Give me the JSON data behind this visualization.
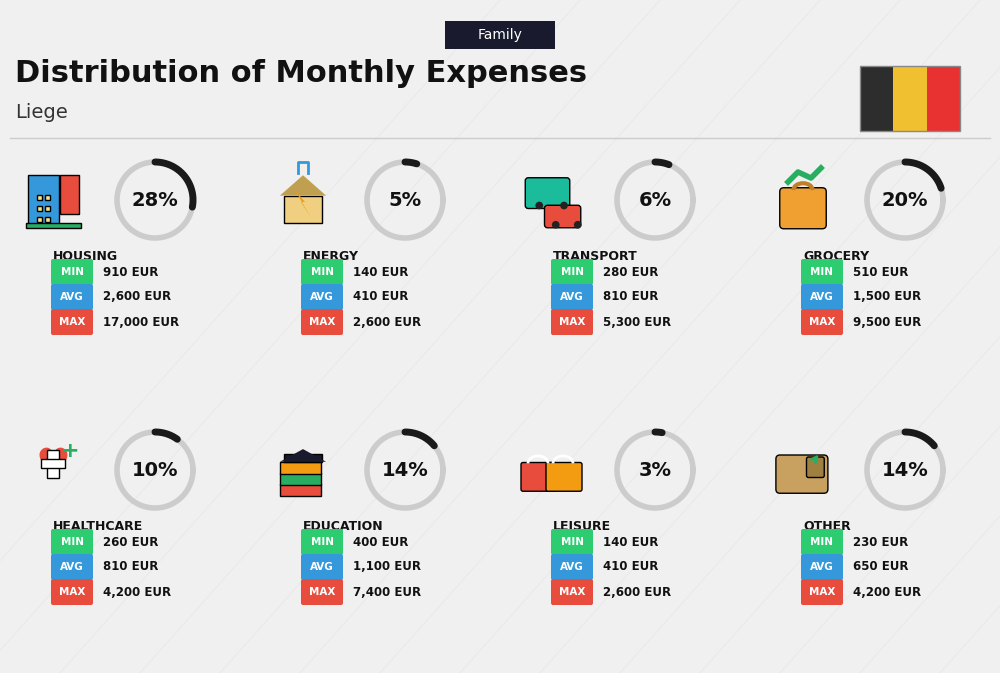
{
  "title": "Distribution of Monthly Expenses",
  "subtitle": "Liege",
  "tag": "Family",
  "background_color": "#f0f0f0",
  "categories": [
    {
      "name": "HOUSING",
      "pct": 28,
      "min": "910 EUR",
      "avg": "2,600 EUR",
      "max": "17,000 EUR",
      "icon": "housing",
      "row": 0,
      "col": 0
    },
    {
      "name": "ENERGY",
      "pct": 5,
      "min": "140 EUR",
      "avg": "410 EUR",
      "max": "2,600 EUR",
      "icon": "energy",
      "row": 0,
      "col": 1
    },
    {
      "name": "TRANSPORT",
      "pct": 6,
      "min": "280 EUR",
      "avg": "810 EUR",
      "max": "5,300 EUR",
      "icon": "transport",
      "row": 0,
      "col": 2
    },
    {
      "name": "GROCERY",
      "pct": 20,
      "min": "510 EUR",
      "avg": "1,500 EUR",
      "max": "9,500 EUR",
      "icon": "grocery",
      "row": 0,
      "col": 3
    },
    {
      "name": "HEALTHCARE",
      "pct": 10,
      "min": "260 EUR",
      "avg": "810 EUR",
      "max": "4,200 EUR",
      "icon": "healthcare",
      "row": 1,
      "col": 0
    },
    {
      "name": "EDUCATION",
      "pct": 14,
      "min": "400 EUR",
      "avg": "1,100 EUR",
      "max": "7,400 EUR",
      "icon": "education",
      "row": 1,
      "col": 1
    },
    {
      "name": "LEISURE",
      "pct": 3,
      "min": "140 EUR",
      "avg": "410 EUR",
      "max": "2,600 EUR",
      "icon": "leisure",
      "row": 1,
      "col": 2
    },
    {
      "name": "OTHER",
      "pct": 14,
      "min": "230 EUR",
      "avg": "650 EUR",
      "max": "4,200 EUR",
      "icon": "other",
      "row": 1,
      "col": 3
    }
  ],
  "color_min": "#2ecc71",
  "color_avg": "#3498db",
  "color_max": "#e74c3c",
  "color_tag_bg": "#1a1a2e",
  "color_tag_text": "#ffffff",
  "belgium_colors": [
    "#2d2d2d",
    "#f0c030",
    "#e83232"
  ]
}
